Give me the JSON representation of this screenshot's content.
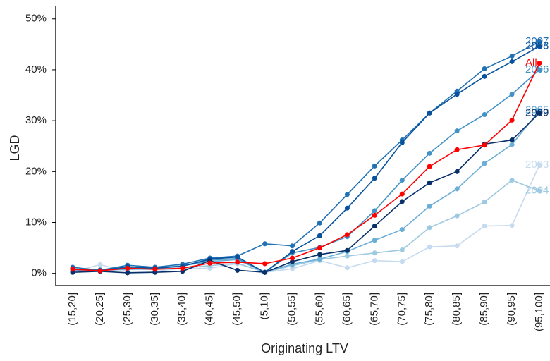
{
  "chart_data": {
    "type": "line",
    "x_label": "Originating LTV",
    "y_label": "LGD",
    "categories": [
      "(15,20]",
      "(20,25]",
      "(25,30]",
      "(30,35]",
      "(35,40]",
      "(40,45]",
      "(45,50]",
      "(5,10]",
      "(50,55]",
      "(55,60]",
      "(60,65]",
      "(65,70]",
      "(70,75]",
      "(75,80]",
      "(80,85]",
      "(85,90]",
      "(90,95]",
      "(95,100]"
    ],
    "ylim": [
      -2.4,
      52.6
    ],
    "yticks": [
      {
        "value": 0,
        "label": "0%"
      },
      {
        "value": 10,
        "label": "10%"
      },
      {
        "value": 20,
        "label": "20%"
      },
      {
        "value": 30,
        "label": "30%"
      },
      {
        "value": 40,
        "label": "40%"
      },
      {
        "value": 50,
        "label": "50%"
      }
    ],
    "series": [
      {
        "name": "2003",
        "color": "#c6dbef",
        "values": [
          0.3,
          1.7,
          0.4,
          0.4,
          1.0,
          1.0,
          1.9,
          0.2,
          0.9,
          2.5,
          1.1,
          2.5,
          2.3,
          5.2,
          5.4,
          9.3,
          9.4,
          21.3
        ]
      },
      {
        "name": "2004",
        "color": "#9ecae1",
        "values": [
          0.5,
          0.5,
          0.8,
          0.8,
          1.1,
          1.5,
          2.0,
          0.2,
          1.5,
          2.7,
          3.4,
          4.0,
          4.6,
          9.0,
          11.3,
          14.0,
          18.3,
          16.2
        ]
      },
      {
        "name": "2005",
        "color": "#6baed6",
        "values": [
          0.6,
          0.6,
          0.8,
          0.9,
          1.5,
          2.3,
          2.7,
          0.2,
          1.8,
          2.8,
          4.3,
          6.5,
          8.6,
          13.2,
          16.6,
          21.6,
          25.3,
          32.0
        ]
      },
      {
        "name": "2006",
        "color": "#4292c6",
        "values": [
          0.7,
          0.7,
          1.1,
          1.0,
          1.5,
          2.6,
          2.9,
          0.2,
          4.0,
          5.1,
          7.2,
          12.3,
          18.3,
          23.6,
          28.0,
          31.2,
          35.2,
          40.0
        ]
      },
      {
        "name": "2007",
        "color": "#2171b5",
        "values": [
          1.2,
          0.6,
          1.6,
          1.2,
          1.8,
          3.0,
          3.4,
          5.8,
          5.4,
          9.9,
          15.5,
          21.1,
          26.2,
          31.5,
          35.8,
          40.2,
          42.7,
          45.5
        ]
      },
      {
        "name": "2008",
        "color": "#08519c",
        "values": [
          0.9,
          0.5,
          1.3,
          1.0,
          1.4,
          2.8,
          3.2,
          0.2,
          4.3,
          7.4,
          12.8,
          18.7,
          25.7,
          31.5,
          35.2,
          38.7,
          41.6,
          44.6
        ]
      },
      {
        "name": "2009",
        "color": "#08306b",
        "values": [
          0.2,
          0.4,
          0.1,
          0.2,
          0.4,
          2.5,
          0.6,
          0.2,
          2.3,
          3.7,
          4.5,
          9.3,
          14.1,
          17.8,
          20.0,
          25.4,
          26.2,
          31.5
        ]
      },
      {
        "name": "All",
        "color": "#ff0000",
        "values": [
          0.8,
          0.5,
          1.0,
          0.8,
          1.0,
          2.0,
          2.2,
          1.9,
          3.0,
          5.0,
          7.6,
          11.4,
          15.6,
          21.0,
          24.3,
          25.2,
          30.1,
          41.3
        ]
      }
    ]
  }
}
